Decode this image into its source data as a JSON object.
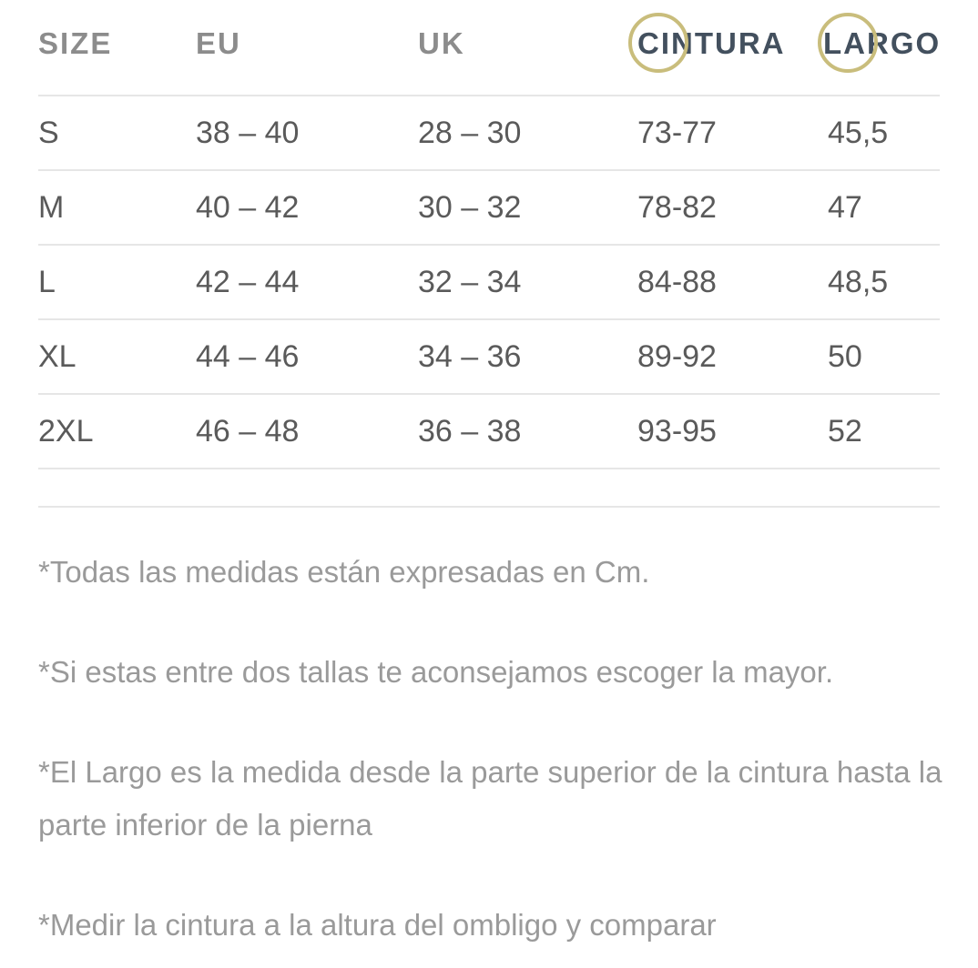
{
  "table": {
    "headers": [
      "SIZE",
      "EU",
      "UK",
      "CINTURA",
      "LARGO"
    ],
    "rows": [
      {
        "size": "S",
        "eu": "38 – 40",
        "uk": "28 – 30",
        "cintura": "73-77",
        "largo": "45,5"
      },
      {
        "size": "M",
        "eu": "40 – 42",
        "uk": "30 – 32",
        "cintura": "78-82",
        "largo": "47"
      },
      {
        "size": "L",
        "eu": "42 – 44",
        "uk": "32 – 34",
        "cintura": "84-88",
        "largo": "48,5"
      },
      {
        "size": "XL",
        "eu": "44 – 46",
        "uk": "34 – 36",
        "cintura": "89-92",
        "largo": "50"
      },
      {
        "size": "2XL",
        "eu": "46 – 48",
        "uk": "36 – 38",
        "cintura": "93-95",
        "largo": "52"
      }
    ]
  },
  "notes": [
    "*Todas las medidas están expresadas en Cm.",
    "*Si estas entre dos tallas te aconsejamos escoger la mayor.",
    "*El Largo es la medida desde la parte superior de la cintura hasta la parte inferior de la pierna",
    "*Medir la cintura a la altura del ombligo y comparar"
  ],
  "colors": {
    "header_text": "#8c8c8c",
    "highlight_header_text": "#43505e",
    "ring": "#c9bd7c",
    "row_text": "#5a5a5a",
    "note_text": "#9a9a9a",
    "divider": "#e6e6e6"
  }
}
